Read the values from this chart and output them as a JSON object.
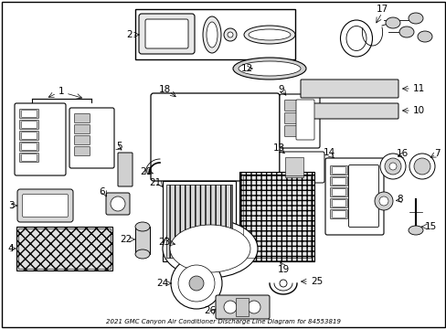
{
  "title": "2021 GMC Canyon Air Conditioner Discharge Line Diagram for 84553819",
  "bg": "#ffffff",
  "fg": "#000000",
  "fig_width": 4.89,
  "fig_height": 3.6,
  "dpi": 100,
  "bottom_label": "2021 GMC Canyon Air Conditioner Discharge Line Diagram for 84553819"
}
